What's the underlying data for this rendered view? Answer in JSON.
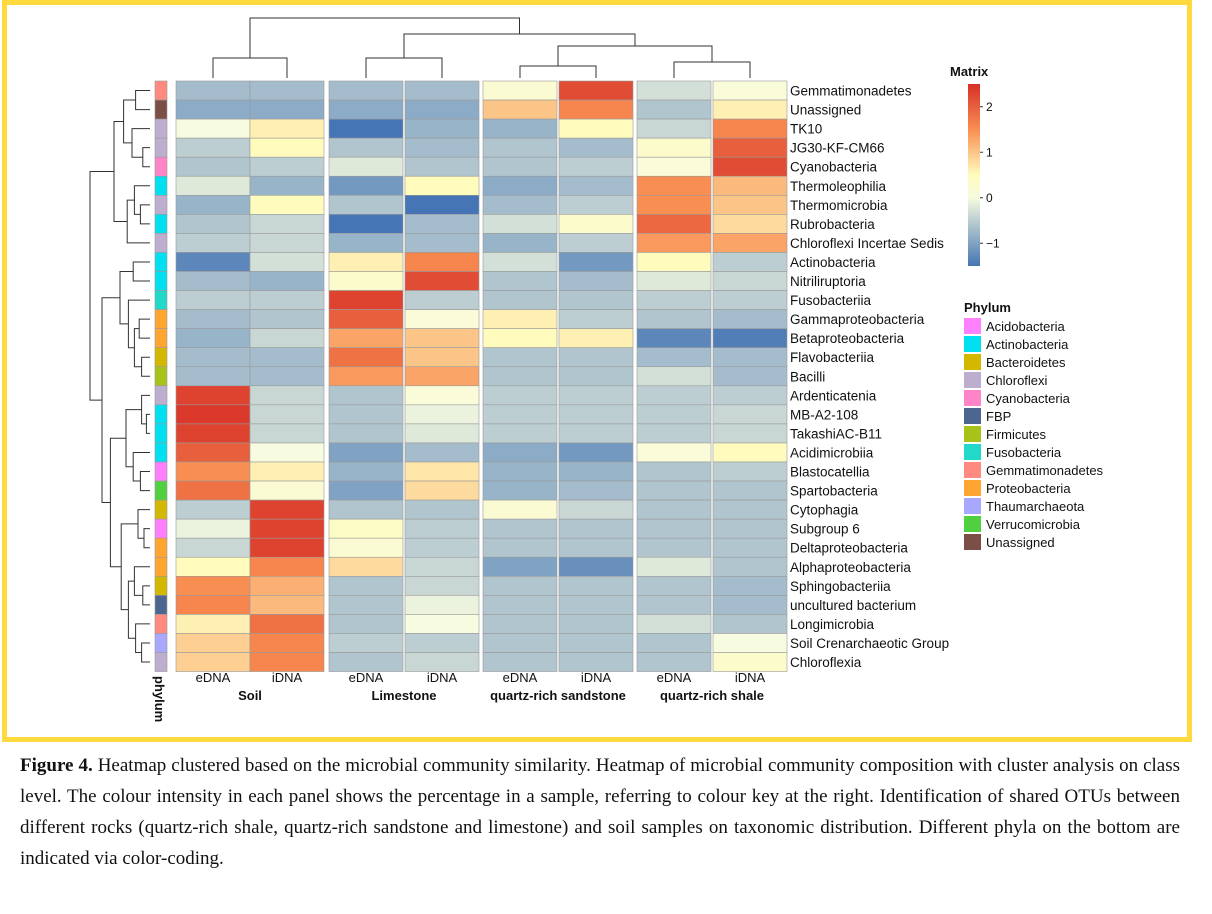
{
  "figure": {
    "caption_label": "Figure 4.",
    "caption_text": "Heatmap clustered based on the microbial community similarity. Heatmap of microbial community composition with cluster analysis on class level.  The colour intensity in each panel shows the percentage in a sample, referring to colour key at the right. Identification of shared OTUs between different rocks (quartz-rich shale, quartz-rich sandstone and limestone) and soil samples on taxonomic distribution. Different phyla on the bottom are indicated via color-coding.",
    "frame_color": "#ffd93d"
  },
  "chart_data": {
    "type": "heatmap",
    "title": "",
    "columns": [
      "eDNA",
      "iDNA",
      "eDNA",
      "iDNA",
      "eDNA",
      "iDNA",
      "eDNA",
      "iDNA"
    ],
    "column_groups": [
      {
        "label": "Soil",
        "columns": [
          0,
          1
        ]
      },
      {
        "label": "Limestone",
        "columns": [
          2,
          3
        ]
      },
      {
        "label": "quartz-rich sandstone",
        "columns": [
          4,
          5
        ]
      },
      {
        "label": "quartz-rich shale",
        "columns": [
          6,
          7
        ]
      }
    ],
    "row_annotation_label": "phylum",
    "rows": [
      {
        "name": "Gemmatimonadetes",
        "phylum": "Gemmatimonadetes",
        "values": [
          -0.7,
          -0.7,
          -0.7,
          -0.7,
          0.2,
          2.2,
          -0.3,
          0.1
        ]
      },
      {
        "name": "Unassigned",
        "phylum": "Unassigned",
        "values": [
          -0.9,
          -0.9,
          -0.9,
          -0.9,
          1.0,
          1.6,
          -0.6,
          0.6
        ]
      },
      {
        "name": "TK10",
        "phylum": "Chloroflexi",
        "values": [
          0.0,
          0.6,
          -1.5,
          -0.8,
          -0.8,
          0.5,
          -0.4,
          1.6
        ]
      },
      {
        "name": "JG30-KF-CM66",
        "phylum": "Chloroflexi",
        "values": [
          -0.5,
          0.5,
          -0.6,
          -0.7,
          -0.6,
          -0.7,
          0.3,
          2.0
        ]
      },
      {
        "name": "Cyanobacteria",
        "phylum": "Cyanobacteria",
        "values": [
          -0.6,
          -0.5,
          -0.2,
          -0.6,
          -0.6,
          -0.5,
          0.1,
          2.2
        ]
      },
      {
        "name": "Thermoleophilia",
        "phylum": "Actinobacteria",
        "values": [
          -0.2,
          -0.8,
          -1.1,
          0.5,
          -0.9,
          -0.7,
          1.5,
          1.1
        ]
      },
      {
        "name": "Thermomicrobia",
        "phylum": "Chloroflexi",
        "values": [
          -0.8,
          0.5,
          -0.6,
          -1.5,
          -0.7,
          -0.5,
          1.5,
          1.0
        ]
      },
      {
        "name": "Rubrobacteria",
        "phylum": "Actinobacteria",
        "values": [
          -0.6,
          -0.4,
          -1.5,
          -0.7,
          -0.3,
          0.3,
          1.9,
          0.8
        ]
      },
      {
        "name": "Chloroflexi Incertae Sedis",
        "phylum": "Chloroflexi",
        "values": [
          -0.5,
          -0.4,
          -0.8,
          -0.7,
          -0.8,
          -0.5,
          1.4,
          1.3
        ]
      },
      {
        "name": "Actinobacteria",
        "phylum": "Actinobacteria",
        "values": [
          -1.3,
          -0.3,
          0.6,
          1.6,
          -0.3,
          -1.1,
          0.5,
          -0.5
        ]
      },
      {
        "name": "Nitriliruptoria",
        "phylum": "Actinobacteria",
        "values": [
          -0.7,
          -0.8,
          0.3,
          2.2,
          -0.6,
          -0.7,
          -0.2,
          -0.4
        ]
      },
      {
        "name": "Fusobacteriia",
        "phylum": "Fusobacteria",
        "values": [
          -0.5,
          -0.5,
          2.3,
          -0.5,
          -0.6,
          -0.6,
          -0.5,
          -0.5
        ]
      },
      {
        "name": "Gammaproteobacteria",
        "phylum": "Proteobacteria",
        "values": [
          -0.7,
          -0.6,
          2.0,
          0.1,
          0.6,
          -0.5,
          -0.6,
          -0.7
        ]
      },
      {
        "name": "Betaproteobacteria",
        "phylum": "Proteobacteria",
        "values": [
          -0.8,
          -0.4,
          1.3,
          1.0,
          0.5,
          0.6,
          -1.3,
          -1.4
        ]
      },
      {
        "name": "Flavobacteriia",
        "phylum": "Bacteroidetes",
        "values": [
          -0.7,
          -0.7,
          1.8,
          1.0,
          -0.6,
          -0.6,
          -0.7,
          -0.7
        ]
      },
      {
        "name": "Bacilli",
        "phylum": "Firmicutes",
        "values": [
          -0.7,
          -0.7,
          1.4,
          1.3,
          -0.6,
          -0.6,
          -0.3,
          -0.7
        ]
      },
      {
        "name": "Ardenticatenia",
        "phylum": "Chloroflexi",
        "values": [
          2.3,
          -0.4,
          -0.6,
          0.1,
          -0.5,
          -0.5,
          -0.5,
          -0.5
        ]
      },
      {
        "name": "MB-A2-108",
        "phylum": "Actinobacteria",
        "values": [
          2.4,
          -0.4,
          -0.6,
          -0.1,
          -0.5,
          -0.5,
          -0.5,
          -0.4
        ]
      },
      {
        "name": "TakashiAC-B11",
        "phylum": "Actinobacteria",
        "values": [
          2.3,
          -0.4,
          -0.6,
          -0.2,
          -0.5,
          -0.5,
          -0.5,
          -0.4
        ]
      },
      {
        "name": "Acidimicrobiia",
        "phylum": "Actinobacteria",
        "values": [
          2.0,
          0.0,
          -1.0,
          -0.7,
          -0.9,
          -1.1,
          0.1,
          0.5
        ]
      },
      {
        "name": "Blastocatellia",
        "phylum": "Acidobacteria",
        "values": [
          1.5,
          0.6,
          -0.8,
          0.7,
          -0.8,
          -0.8,
          -0.6,
          -0.5
        ]
      },
      {
        "name": "Spartobacteria",
        "phylum": "Verrucomicrobia",
        "values": [
          1.8,
          0.2,
          -1.0,
          0.8,
          -0.8,
          -0.7,
          -0.6,
          -0.6
        ]
      },
      {
        "name": "Cytophagia",
        "phylum": "Bacteroidetes",
        "values": [
          -0.5,
          2.3,
          -0.6,
          -0.6,
          0.2,
          -0.4,
          -0.6,
          -0.6
        ]
      },
      {
        "name": "Subgroup 6",
        "phylum": "Acidobacteria",
        "values": [
          -0.1,
          2.3,
          0.4,
          -0.5,
          -0.6,
          -0.6,
          -0.6,
          -0.6
        ]
      },
      {
        "name": "Deltaproteobacteria",
        "phylum": "Proteobacteria",
        "values": [
          -0.4,
          2.3,
          0.2,
          -0.5,
          -0.6,
          -0.6,
          -0.6,
          -0.6
        ]
      },
      {
        "name": "Alphaproteobacteria",
        "phylum": "Proteobacteria",
        "values": [
          0.5,
          1.6,
          0.8,
          -0.4,
          -1.0,
          -1.2,
          -0.2,
          -0.6
        ]
      },
      {
        "name": "Sphingobacteriia",
        "phylum": "Bacteroidetes",
        "values": [
          1.5,
          1.2,
          -0.6,
          -0.4,
          -0.6,
          -0.6,
          -0.6,
          -0.7
        ]
      },
      {
        "name": "uncultured bacterium",
        "phylum": "FBP",
        "values": [
          1.6,
          1.1,
          -0.6,
          -0.1,
          -0.6,
          -0.6,
          -0.6,
          -0.7
        ]
      },
      {
        "name": "Longimicrobia",
        "phylum": "Gemmatimonadetes",
        "values": [
          0.6,
          1.8,
          -0.6,
          0.0,
          -0.6,
          -0.6,
          -0.3,
          -0.6
        ]
      },
      {
        "name": "Soil Crenarchaeotic Group",
        "phylum": "Thaumarchaeota",
        "values": [
          0.9,
          1.6,
          -0.5,
          -0.5,
          -0.6,
          -0.6,
          -0.6,
          0.0
        ]
      },
      {
        "name": "Chloroflexia",
        "phylum": "Chloroflexi",
        "values": [
          0.9,
          1.6,
          -0.6,
          -0.4,
          -0.6,
          -0.6,
          -0.6,
          0.3
        ]
      }
    ],
    "color_scale": {
      "title": "Matrix",
      "range": [
        -1.5,
        2.5
      ],
      "ticks": [
        2,
        1,
        0,
        -1
      ],
      "tick_labels": [
        "2",
        "1",
        "0",
        "−1"
      ],
      "stops": [
        {
          "value": -1.5,
          "color": "#4575b4"
        },
        {
          "value": 0,
          "color": "#f7fbe0"
        },
        {
          "value": 0.5,
          "color": "#fffbbd"
        },
        {
          "value": 1.5,
          "color": "#f98e52"
        },
        {
          "value": 2.5,
          "color": "#d73027"
        }
      ]
    },
    "phylum_legend": {
      "title": "Phylum",
      "entries": [
        {
          "name": "Acidobacteria",
          "color": "#ff80ff"
        },
        {
          "name": "Actinobacteria",
          "color": "#00e0f0"
        },
        {
          "name": "Bacteroidetes",
          "color": "#d4b800"
        },
        {
          "name": "Chloroflexi",
          "color": "#bdaed0"
        },
        {
          "name": "Cyanobacteria",
          "color": "#ff84c8"
        },
        {
          "name": "FBP",
          "color": "#4c6690"
        },
        {
          "name": "Firmicutes",
          "color": "#a8c21a"
        },
        {
          "name": "Fusobacteria",
          "color": "#22d8c8"
        },
        {
          "name": "Gemmatimonadetes",
          "color": "#ff8a80"
        },
        {
          "name": "Proteobacteria",
          "color": "#ffa530"
        },
        {
          "name": "Thaumarchaeota",
          "color": "#a8a8ff"
        },
        {
          "name": "Verrucomicrobia",
          "color": "#50d040"
        },
        {
          "name": "Unassigned",
          "color": "#7b4f45"
        }
      ]
    },
    "column_dendrogram": [
      [
        0,
        1,
        1.0
      ],
      [
        2,
        3,
        1.0
      ],
      [
        4,
        5,
        0.6
      ],
      [
        6,
        7,
        0.8
      ],
      [
        "g2",
        "g3",
        1.6
      ],
      [
        "g1",
        "g4",
        2.2
      ],
      [
        "g0",
        "g5",
        3.0
      ]
    ],
    "row_dendrogram": "clustered"
  }
}
